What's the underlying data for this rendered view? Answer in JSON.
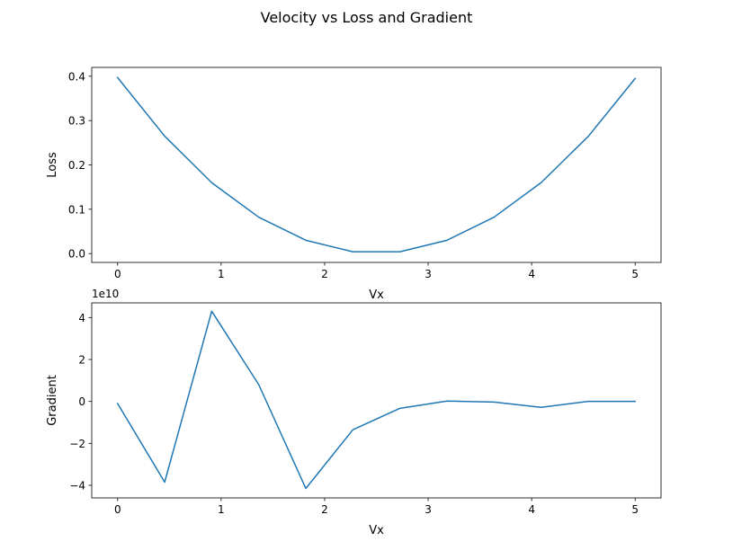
{
  "figure_title": "Velocity vs Loss and Gradient",
  "chart_data": [
    {
      "type": "line",
      "xlabel": "Vx",
      "ylabel": "Loss",
      "xlim": [
        -0.25,
        5.25
      ],
      "ylim": [
        -0.02,
        0.42
      ],
      "xticks": [
        0,
        1,
        2,
        3,
        4,
        5
      ],
      "xtick_labels": [
        "0",
        "1",
        "2",
        "3",
        "4",
        "5"
      ],
      "yticks": [
        0.0,
        0.1,
        0.2,
        0.3,
        0.4
      ],
      "ytick_labels": [
        "0.0",
        "0.1",
        "0.2",
        "0.3",
        "0.4"
      ],
      "grid": false,
      "color": "#1f77b4",
      "x": [
        0,
        0.4545,
        0.9091,
        1.3636,
        1.8182,
        2.2727,
        2.7273,
        3.1818,
        3.6364,
        4.0909,
        4.5455,
        5.0
      ],
      "y": [
        0.397,
        0.265,
        0.16,
        0.082,
        0.03,
        0.004,
        0.004,
        0.03,
        0.082,
        0.16,
        0.264,
        0.395
      ]
    },
    {
      "type": "line",
      "xlabel": "Vx",
      "ylabel": "Gradient",
      "offset_label": "1e10",
      "xlim": [
        -0.25,
        5.25
      ],
      "ylim": [
        -4.6,
        4.7
      ],
      "xticks": [
        0,
        1,
        2,
        3,
        4,
        5
      ],
      "xtick_labels": [
        "0",
        "1",
        "2",
        "3",
        "4",
        "5"
      ],
      "yticks": [
        -4,
        -2,
        0,
        2,
        4
      ],
      "ytick_labels": [
        "−4",
        "−2",
        "0",
        "2",
        "4"
      ],
      "grid": false,
      "color": "#1f77b4",
      "x": [
        0,
        0.4545,
        0.9091,
        1.3636,
        1.8182,
        2.2727,
        2.7273,
        3.1818,
        3.6364,
        4.0909,
        4.5455,
        5.0
      ],
      "y": [
        -0.1,
        -3.85,
        4.3,
        0.8,
        -4.15,
        -1.35,
        -0.33,
        0.02,
        -0.03,
        -0.28,
        0.0,
        0.0
      ]
    }
  ]
}
